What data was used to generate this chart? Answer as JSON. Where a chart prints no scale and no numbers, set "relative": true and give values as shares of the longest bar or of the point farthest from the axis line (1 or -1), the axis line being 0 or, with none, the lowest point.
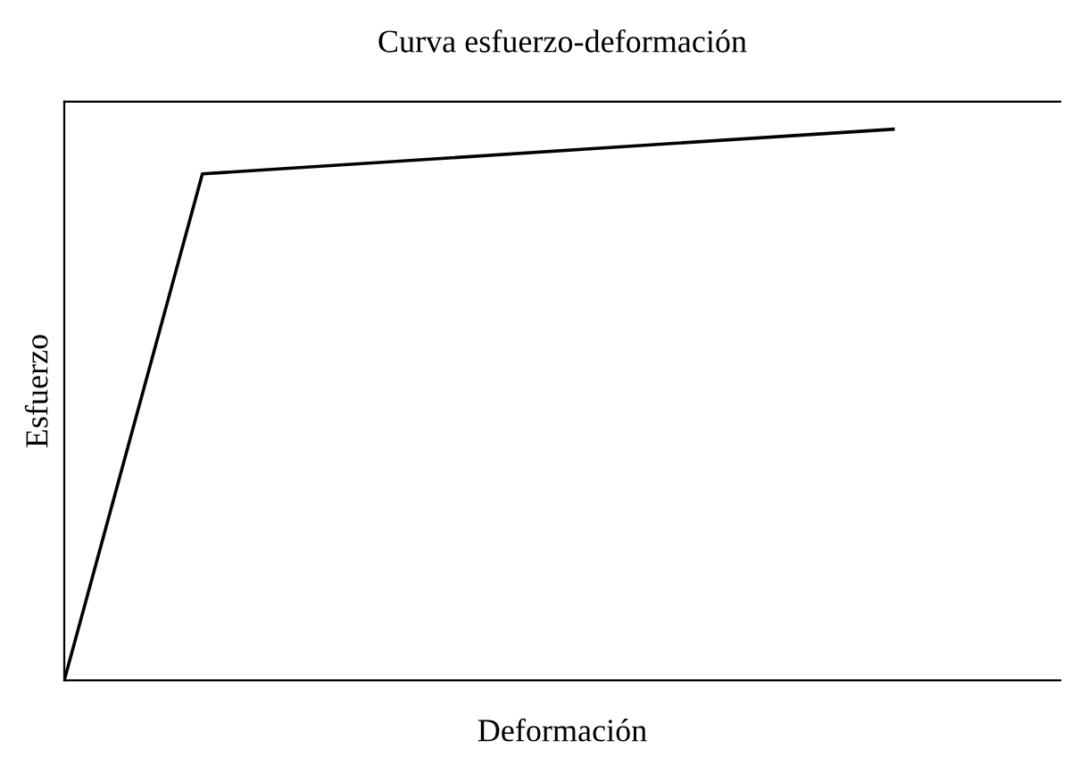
{
  "chart_data": {
    "type": "line",
    "title": "Curva esfuerzo-deformación",
    "xlabel": "Deformación",
    "ylabel": "Esfuerzo",
    "relative": true,
    "categories": [
      null,
      null,
      null,
      null,
      null,
      null,
      null,
      null,
      null,
      null,
      null,
      null,
      null,
      null,
      null
    ],
    "series": [
      {
        "color": "#000000",
        "values": [
          0,
          null,
          0.919,
          null,
          null,
          null,
          null,
          null,
          null,
          null,
          null,
          null,
          1,
          null,
          null
        ]
      }
    ]
  }
}
